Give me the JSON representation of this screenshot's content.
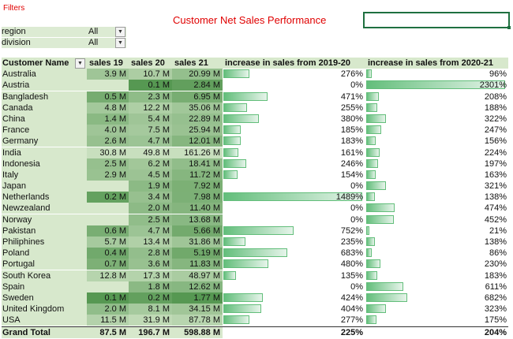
{
  "header": {
    "filters_label": "Filters",
    "title": "Customer Net Sales Performance"
  },
  "filters": [
    {
      "field": "region",
      "value": "All"
    },
    {
      "field": "division",
      "value": "All"
    }
  ],
  "columns": {
    "customer": "Customer Name",
    "s19": "sales 19",
    "s20": "sales 20",
    "s21": "sales 21",
    "inc1": "increase in sales from 2019-20",
    "inc2": "increase in sales from 2020-21"
  },
  "color_scale": {
    "low": "#d7e8cc",
    "high": "#3f8a3c",
    "bar": "#63be7b"
  },
  "rows": [
    {
      "name": "Australia",
      "s19": "3.9 M",
      "s20": "10.7 M",
      "s21": "20.99 M",
      "i1": "276%",
      "i2": "96%",
      "v19": 3.9,
      "v20": 10.7,
      "v21": 20.99,
      "p1": 276,
      "p2": 96
    },
    {
      "name": "Austria",
      "s19": "",
      "s20": "0.1 M",
      "s21": "2.84 M",
      "i1": "0%",
      "i2": "2301%",
      "v19": null,
      "v20": 0.1,
      "v21": 2.84,
      "p1": 0,
      "p2": 2301
    },
    {
      "name": "Bangladesh",
      "s19": "0.5 M",
      "s20": "2.3 M",
      "s21": "6.95 M",
      "i1": "471%",
      "i2": "208%",
      "v19": 0.5,
      "v20": 2.3,
      "v21": 6.95,
      "p1": 471,
      "p2": 208
    },
    {
      "name": "Canada",
      "s19": "4.8 M",
      "s20": "12.2 M",
      "s21": "35.06 M",
      "i1": "255%",
      "i2": "188%",
      "v19": 4.8,
      "v20": 12.2,
      "v21": 35.06,
      "p1": 255,
      "p2": 188
    },
    {
      "name": "China",
      "s19": "1.4 M",
      "s20": "5.4 M",
      "s21": "22.89 M",
      "i1": "380%",
      "i2": "322%",
      "v19": 1.4,
      "v20": 5.4,
      "v21": 22.89,
      "p1": 380,
      "p2": 322
    },
    {
      "name": "France",
      "s19": "4.0 M",
      "s20": "7.5 M",
      "s21": "25.94 M",
      "i1": "185%",
      "i2": "247%",
      "v19": 4.0,
      "v20": 7.5,
      "v21": 25.94,
      "p1": 185,
      "p2": 247
    },
    {
      "name": "Germany",
      "s19": "2.6 M",
      "s20": "4.7 M",
      "s21": "12.01 M",
      "i1": "183%",
      "i2": "156%",
      "v19": 2.6,
      "v20": 4.7,
      "v21": 12.01,
      "p1": 183,
      "p2": 156
    },
    {
      "name": "India",
      "s19": "30.8 M",
      "s20": "49.8 M",
      "s21": "161.26 M",
      "i1": "161%",
      "i2": "224%",
      "v19": 30.8,
      "v20": 49.8,
      "v21": 161.26,
      "p1": 161,
      "p2": 224
    },
    {
      "name": "Indonesia",
      "s19": "2.5 M",
      "s20": "6.2 M",
      "s21": "18.41 M",
      "i1": "246%",
      "i2": "197%",
      "v19": 2.5,
      "v20": 6.2,
      "v21": 18.41,
      "p1": 246,
      "p2": 197
    },
    {
      "name": "Italy",
      "s19": "2.9 M",
      "s20": "4.5 M",
      "s21": "11.72 M",
      "i1": "154%",
      "i2": "163%",
      "v19": 2.9,
      "v20": 4.5,
      "v21": 11.72,
      "p1": 154,
      "p2": 163
    },
    {
      "name": "Japan",
      "s19": "",
      "s20": "1.9 M",
      "s21": "7.92 M",
      "i1": "0%",
      "i2": "321%",
      "v19": null,
      "v20": 1.9,
      "v21": 7.92,
      "p1": 0,
      "p2": 321
    },
    {
      "name": "Netherlands",
      "s19": "0.2 M",
      "s20": "3.4 M",
      "s21": "7.98 M",
      "i1": "1489%",
      "i2": "138%",
      "v19": 0.2,
      "v20": 3.4,
      "v21": 7.98,
      "p1": 1489,
      "p2": 138
    },
    {
      "name": "Newzealand",
      "s19": "",
      "s20": "2.0 M",
      "s21": "11.40 M",
      "i1": "0%",
      "i2": "474%",
      "v19": null,
      "v20": 2.0,
      "v21": 11.4,
      "p1": 0,
      "p2": 474
    },
    {
      "name": "Norway",
      "s19": "",
      "s20": "2.5 M",
      "s21": "13.68 M",
      "i1": "0%",
      "i2": "452%",
      "v19": null,
      "v20": 2.5,
      "v21": 13.68,
      "p1": 0,
      "p2": 452
    },
    {
      "name": "Pakistan",
      "s19": "0.6 M",
      "s20": "4.7 M",
      "s21": "5.66 M",
      "i1": "752%",
      "i2": "21%",
      "v19": 0.6,
      "v20": 4.7,
      "v21": 5.66,
      "p1": 752,
      "p2": 21
    },
    {
      "name": "Philiphines",
      "s19": "5.7 M",
      "s20": "13.4 M",
      "s21": "31.86 M",
      "i1": "235%",
      "i2": "138%",
      "v19": 5.7,
      "v20": 13.4,
      "v21": 31.86,
      "p1": 235,
      "p2": 138
    },
    {
      "name": "Poland",
      "s19": "0.4 M",
      "s20": "2.8 M",
      "s21": "5.19 M",
      "i1": "683%",
      "i2": "86%",
      "v19": 0.4,
      "v20": 2.8,
      "v21": 5.19,
      "p1": 683,
      "p2": 86
    },
    {
      "name": "Portugal",
      "s19": "0.7 M",
      "s20": "3.6 M",
      "s21": "11.83 M",
      "i1": "480%",
      "i2": "230%",
      "v19": 0.7,
      "v20": 3.6,
      "v21": 11.83,
      "p1": 480,
      "p2": 230
    },
    {
      "name": "South Korea",
      "s19": "12.8 M",
      "s20": "17.3 M",
      "s21": "48.97 M",
      "i1": "135%",
      "i2": "183%",
      "v19": 12.8,
      "v20": 17.3,
      "v21": 48.97,
      "p1": 135,
      "p2": 183
    },
    {
      "name": "Spain",
      "s19": "",
      "s20": "1.8 M",
      "s21": "12.62 M",
      "i1": "0%",
      "i2": "611%",
      "v19": null,
      "v20": 1.8,
      "v21": 12.62,
      "p1": 0,
      "p2": 611
    },
    {
      "name": "Sweden",
      "s19": "0.1 M",
      "s20": "0.2 M",
      "s21": "1.77 M",
      "i1": "424%",
      "i2": "682%",
      "v19": 0.1,
      "v20": 0.2,
      "v21": 1.77,
      "p1": 424,
      "p2": 682
    },
    {
      "name": "United Kingdom",
      "s19": "2.0 M",
      "s20": "8.1 M",
      "s21": "34.15 M",
      "i1": "404%",
      "i2": "323%",
      "v19": 2.0,
      "v20": 8.1,
      "v21": 34.15,
      "p1": 404,
      "p2": 323
    },
    {
      "name": "USA",
      "s19": "11.5 M",
      "s20": "31.9 M",
      "s21": "87.78 M",
      "i1": "277%",
      "i2": "175%",
      "v19": 11.5,
      "v20": 31.9,
      "v21": 87.78,
      "p1": 277,
      "p2": 175
    }
  ],
  "total": {
    "name": "Grand Total",
    "s19": "87.5 M",
    "s20": "196.7 M",
    "s21": "598.88 M",
    "i1": "225%",
    "i2": "204%"
  }
}
